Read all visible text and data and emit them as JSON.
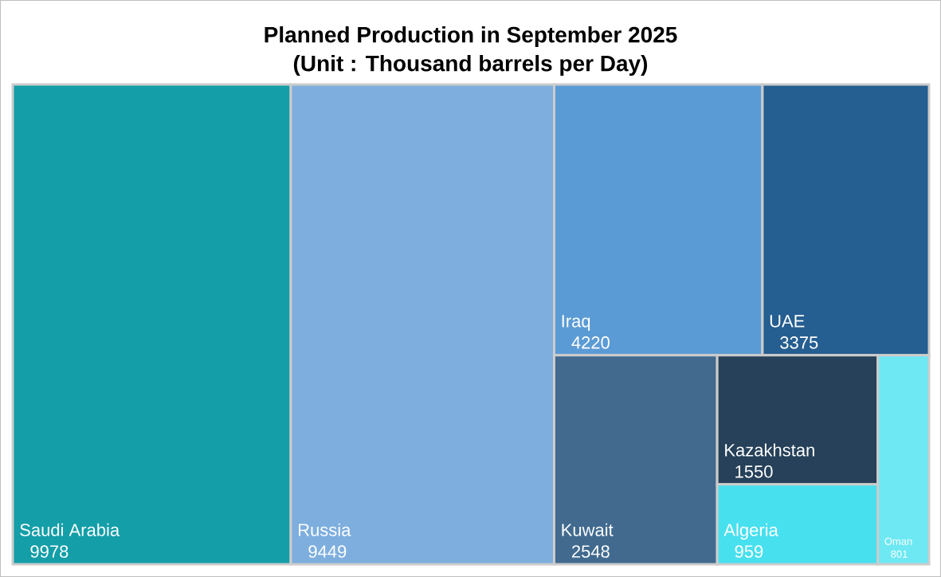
{
  "chart_data": {
    "type": "other",
    "title": "Planned Production in September 2025",
    "subtitle": "(Unit : Thousand barrels per Day)",
    "categories": [
      "Saudi Arabia",
      "Russia",
      "Iraq",
      "UAE",
      "Kuwait",
      "Kazakhstan",
      "Algeria",
      "Oman"
    ],
    "values": [
      9978,
      9449,
      4220,
      3375,
      2548,
      1550,
      959,
      801
    ],
    "colors": [
      "#139ea8",
      "#7daede",
      "#5b9bd5",
      "#255e91",
      "#416a8e",
      "#264159",
      "#47e0ef",
      "#6ee8f3"
    ],
    "data_labels": true
  }
}
